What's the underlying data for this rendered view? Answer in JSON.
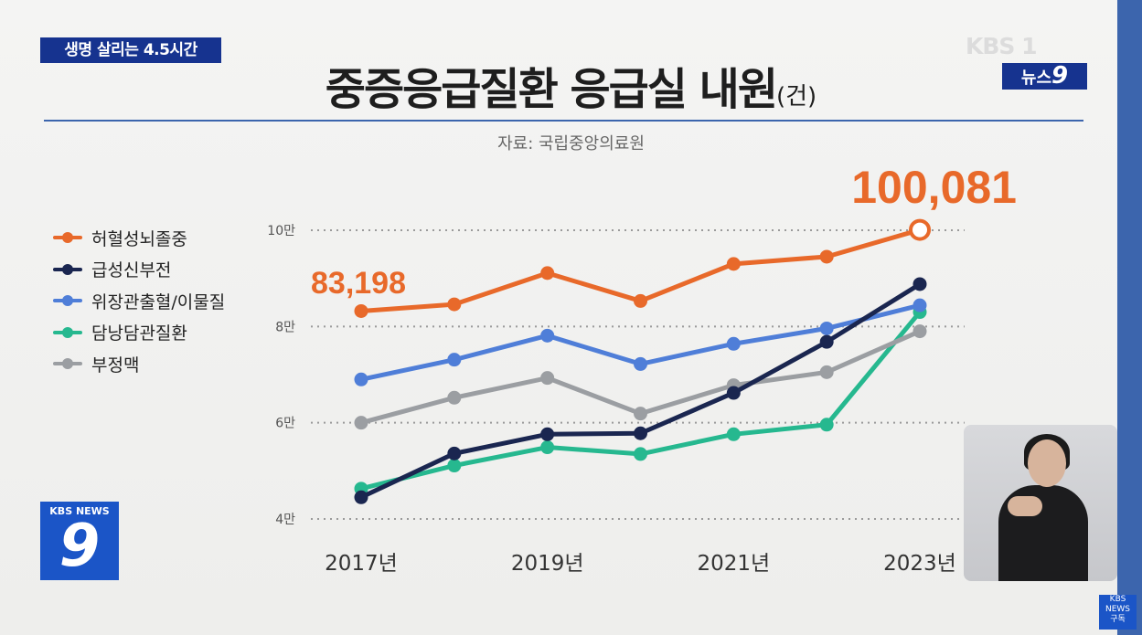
{
  "header": {
    "topic_badge": "생명 살리는 4.5시간",
    "channel_logo": "KBS 1",
    "program_badge_text": "뉴스",
    "program_badge_number": "9"
  },
  "title": {
    "main": "중증응급질환 응급실 내원",
    "unit": "(건)"
  },
  "source": "자료: 국립중앙의료원",
  "bottom_logo": {
    "label": "KBS NEWS",
    "number": "9"
  },
  "subscribe": {
    "line1": "KBS",
    "line2": "NEWS",
    "line3": "구독"
  },
  "chart_data": {
    "type": "line",
    "title": "중증응급질환 응급실 내원",
    "unit": "(건)",
    "x": [
      2017,
      2018,
      2019,
      2020,
      2021,
      2022,
      2023
    ],
    "xtick_labels": [
      "2017년",
      "",
      "2019년",
      "",
      "2021년",
      "",
      "2023년"
    ],
    "yticks": [
      40000,
      60000,
      80000,
      100000
    ],
    "ytick_labels": [
      "4만",
      "6만",
      "8만",
      "10만"
    ],
    "ylim": [
      40000,
      100000
    ],
    "grid": true,
    "legend_position": "left",
    "series": [
      {
        "name": "허혈성뇌졸중",
        "color": "#e8692a",
        "values": [
          83198,
          84600,
          91100,
          85300,
          93000,
          94500,
          100081
        ]
      },
      {
        "name": "급성신부전",
        "color": "#1a2650",
        "values": [
          44500,
          53600,
          57600,
          57800,
          66200,
          76800,
          88800
        ]
      },
      {
        "name": "위장관출혈/이물질",
        "color": "#4f7ed8",
        "values": [
          69000,
          73100,
          78100,
          72200,
          76400,
          79600,
          84400
        ]
      },
      {
        "name": "담낭담관질환",
        "color": "#26b88f",
        "values": [
          46300,
          51100,
          54900,
          53500,
          57600,
          59600,
          83000
        ]
      },
      {
        "name": "부정맥",
        "color": "#9b9ea2",
        "values": [
          60000,
          65200,
          69300,
          61900,
          67800,
          70500,
          79000
        ]
      }
    ],
    "annotations": [
      {
        "series": "허혈성뇌졸중",
        "x": 2017,
        "text": "83,198"
      },
      {
        "series": "허혈성뇌졸중",
        "x": 2023,
        "text": "100,081"
      }
    ]
  }
}
